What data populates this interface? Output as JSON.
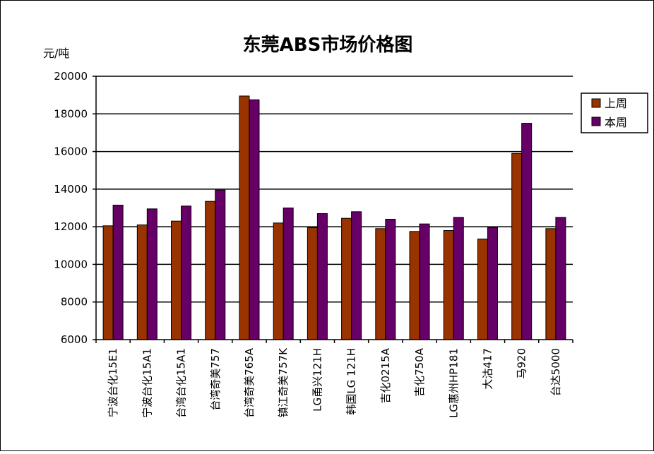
{
  "chart_data": {
    "type": "bar",
    "title": "东莞ABS市场价格图",
    "ylabel": "元/吨",
    "xlabel": "",
    "ylim": [
      6000,
      20000
    ],
    "yticks": [
      6000,
      8000,
      10000,
      12000,
      14000,
      16000,
      18000,
      20000
    ],
    "grid": true,
    "legend_position": "right",
    "categories": [
      "宁波台化15E1",
      "宁波台化15A1",
      "台湾台化15A1",
      "台湾奇美757",
      "台湾奇美765A",
      "镇江奇美757K",
      "LG甬兴121H",
      "韩国LG 121H",
      "吉化0215A",
      "吉化750A",
      "LG惠州HP181",
      "大沽417",
      "马920",
      "台达5000"
    ],
    "series": [
      {
        "name": "上周",
        "color": "#993300",
        "values": [
          12050,
          12100,
          12300,
          13350,
          18950,
          12200,
          11950,
          12450,
          11900,
          11750,
          11800,
          11350,
          15900,
          11900
        ]
      },
      {
        "name": "本周",
        "color": "#660066",
        "values": [
          13150,
          12950,
          13100,
          13950,
          18750,
          13000,
          12700,
          12800,
          12400,
          12150,
          12500,
          11950,
          17500,
          12500
        ]
      }
    ]
  }
}
